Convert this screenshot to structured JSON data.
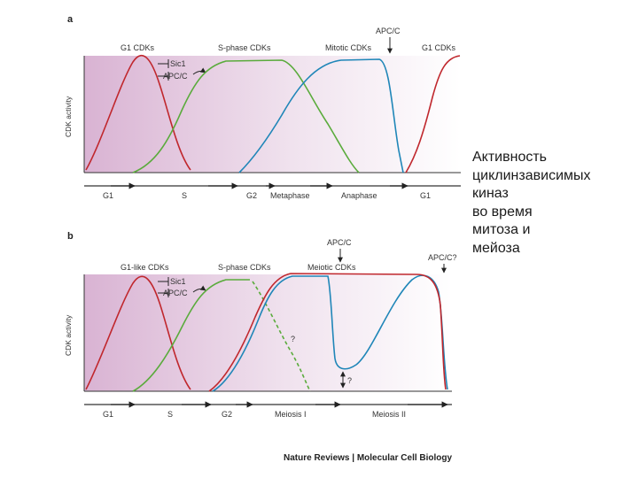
{
  "panel_a": {
    "tag": "a",
    "y_axis": "CDK activity",
    "top_labels": [
      "G1 CDKs",
      "S-phase CDKs",
      "Mitotic CDKs",
      "G1 CDKs"
    ],
    "apc": "APC/C",
    "inhibitors": [
      "Sic1",
      "APC/C"
    ],
    "phases": [
      "G1",
      "S",
      "G2",
      "Metaphase",
      "Anaphase",
      "G1"
    ],
    "colors": {
      "g1": "#c0272d",
      "s": "#5aab3c",
      "mitotic": "#1f86b8"
    }
  },
  "panel_b": {
    "tag": "b",
    "y_axis": "CDK activity",
    "top_labels": [
      "G1-like CDKs",
      "S-phase CDKs",
      "Meiotic CDKs"
    ],
    "apc1": "APC/C",
    "apc2": "APC/C?",
    "inhibitors": [
      "Sic1",
      "APC/C"
    ],
    "question1": "?",
    "question2": "?",
    "phases": [
      "G1",
      "S",
      "G2",
      "Meiosis I",
      "Meiosis II"
    ]
  },
  "journal": "Nature Reviews | Molecular Cell Biology",
  "caption": [
    "Активность",
    "циклинзависимых",
    "киназ",
    "во время",
    "митоза и",
    "мейоза"
  ]
}
